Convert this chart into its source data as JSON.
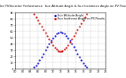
{
  "title": "Solar PV/Inverter Performance  Sun Altitude Angle & Sun Incidence Angle on PV Panels",
  "legend_labels": [
    "Sun Altitude Angle",
    "Sun Incidence Angle on PV Panels"
  ],
  "legend_colors": [
    "#0000cc",
    "#cc0000"
  ],
  "bg_color": "#ffffff",
  "grid_color": "#bbbbbb",
  "xlim": [
    0,
    24
  ],
  "ylim": [
    0,
    90
  ],
  "yticks": [
    0,
    10,
    20,
    30,
    40,
    50,
    60,
    70,
    80,
    90
  ],
  "xticks": [
    0,
    2,
    4,
    6,
    8,
    10,
    12,
    14,
    16,
    18,
    20,
    22,
    24
  ],
  "altitude_x": [
    5.0,
    5.5,
    6.0,
    6.5,
    7.0,
    7.5,
    8.0,
    8.5,
    9.0,
    9.5,
    10.0,
    10.5,
    11.0,
    11.5,
    12.0,
    12.5,
    13.0,
    13.5,
    14.0,
    14.5,
    15.0,
    15.5,
    16.0,
    16.5,
    17.0,
    17.5,
    18.0,
    18.5,
    19.0
  ],
  "altitude_y": [
    2,
    5,
    9,
    14,
    19,
    24,
    30,
    35,
    40,
    45,
    49,
    53,
    56,
    58,
    59,
    58,
    56,
    53,
    49,
    45,
    40,
    35,
    30,
    24,
    19,
    14,
    9,
    5,
    2
  ],
  "incidence_x": [
    5.0,
    5.5,
    6.0,
    6.5,
    7.0,
    7.5,
    8.0,
    8.5,
    9.0,
    9.5,
    10.0,
    10.5,
    11.0,
    11.5,
    12.0,
    12.5,
    13.0,
    13.5,
    14.0,
    14.5,
    15.0,
    15.5,
    16.0,
    16.5,
    17.0,
    17.5,
    18.0,
    18.5,
    19.0
  ],
  "incidence_y": [
    87,
    82,
    77,
    72,
    67,
    62,
    57,
    52,
    47,
    42,
    38,
    34,
    31,
    29,
    28,
    29,
    31,
    34,
    38,
    42,
    47,
    52,
    57,
    62,
    67,
    72,
    77,
    82,
    87
  ],
  "hline_x": [
    11.5,
    12.5
  ],
  "hline_y": [
    28,
    28
  ],
  "altitude_color": "#0000cc",
  "incidence_color": "#cc0000",
  "marker_size": 1.2,
  "title_fontsize": 2.8,
  "tick_fontsize": 2.5,
  "legend_fontsize": 2.5
}
